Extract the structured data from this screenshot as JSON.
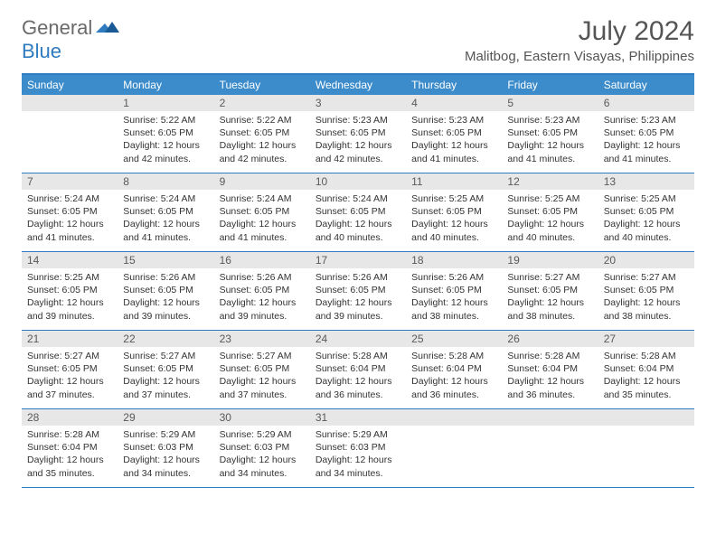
{
  "brand": {
    "general": "General",
    "blue": "Blue"
  },
  "title": "July 2024",
  "location": "Malitbog, Eastern Visayas, Philippines",
  "colors": {
    "header_bg": "#3c8ccc",
    "border": "#2f7bbf",
    "daynum_bg": "#e7e7e7",
    "text": "#333333",
    "title_text": "#555555"
  },
  "day_names": [
    "Sunday",
    "Monday",
    "Tuesday",
    "Wednesday",
    "Thursday",
    "Friday",
    "Saturday"
  ],
  "weeks": [
    [
      {
        "n": "",
        "sunrise": "",
        "sunset": "",
        "daylight": ""
      },
      {
        "n": "1",
        "sunrise": "5:22 AM",
        "sunset": "6:05 PM",
        "daylight": "12 hours and 42 minutes."
      },
      {
        "n": "2",
        "sunrise": "5:22 AM",
        "sunset": "6:05 PM",
        "daylight": "12 hours and 42 minutes."
      },
      {
        "n": "3",
        "sunrise": "5:23 AM",
        "sunset": "6:05 PM",
        "daylight": "12 hours and 42 minutes."
      },
      {
        "n": "4",
        "sunrise": "5:23 AM",
        "sunset": "6:05 PM",
        "daylight": "12 hours and 41 minutes."
      },
      {
        "n": "5",
        "sunrise": "5:23 AM",
        "sunset": "6:05 PM",
        "daylight": "12 hours and 41 minutes."
      },
      {
        "n": "6",
        "sunrise": "5:23 AM",
        "sunset": "6:05 PM",
        "daylight": "12 hours and 41 minutes."
      }
    ],
    [
      {
        "n": "7",
        "sunrise": "5:24 AM",
        "sunset": "6:05 PM",
        "daylight": "12 hours and 41 minutes."
      },
      {
        "n": "8",
        "sunrise": "5:24 AM",
        "sunset": "6:05 PM",
        "daylight": "12 hours and 41 minutes."
      },
      {
        "n": "9",
        "sunrise": "5:24 AM",
        "sunset": "6:05 PM",
        "daylight": "12 hours and 41 minutes."
      },
      {
        "n": "10",
        "sunrise": "5:24 AM",
        "sunset": "6:05 PM",
        "daylight": "12 hours and 40 minutes."
      },
      {
        "n": "11",
        "sunrise": "5:25 AM",
        "sunset": "6:05 PM",
        "daylight": "12 hours and 40 minutes."
      },
      {
        "n": "12",
        "sunrise": "5:25 AM",
        "sunset": "6:05 PM",
        "daylight": "12 hours and 40 minutes."
      },
      {
        "n": "13",
        "sunrise": "5:25 AM",
        "sunset": "6:05 PM",
        "daylight": "12 hours and 40 minutes."
      }
    ],
    [
      {
        "n": "14",
        "sunrise": "5:25 AM",
        "sunset": "6:05 PM",
        "daylight": "12 hours and 39 minutes."
      },
      {
        "n": "15",
        "sunrise": "5:26 AM",
        "sunset": "6:05 PM",
        "daylight": "12 hours and 39 minutes."
      },
      {
        "n": "16",
        "sunrise": "5:26 AM",
        "sunset": "6:05 PM",
        "daylight": "12 hours and 39 minutes."
      },
      {
        "n": "17",
        "sunrise": "5:26 AM",
        "sunset": "6:05 PM",
        "daylight": "12 hours and 39 minutes."
      },
      {
        "n": "18",
        "sunrise": "5:26 AM",
        "sunset": "6:05 PM",
        "daylight": "12 hours and 38 minutes."
      },
      {
        "n": "19",
        "sunrise": "5:27 AM",
        "sunset": "6:05 PM",
        "daylight": "12 hours and 38 minutes."
      },
      {
        "n": "20",
        "sunrise": "5:27 AM",
        "sunset": "6:05 PM",
        "daylight": "12 hours and 38 minutes."
      }
    ],
    [
      {
        "n": "21",
        "sunrise": "5:27 AM",
        "sunset": "6:05 PM",
        "daylight": "12 hours and 37 minutes."
      },
      {
        "n": "22",
        "sunrise": "5:27 AM",
        "sunset": "6:05 PM",
        "daylight": "12 hours and 37 minutes."
      },
      {
        "n": "23",
        "sunrise": "5:27 AM",
        "sunset": "6:05 PM",
        "daylight": "12 hours and 37 minutes."
      },
      {
        "n": "24",
        "sunrise": "5:28 AM",
        "sunset": "6:04 PM",
        "daylight": "12 hours and 36 minutes."
      },
      {
        "n": "25",
        "sunrise": "5:28 AM",
        "sunset": "6:04 PM",
        "daylight": "12 hours and 36 minutes."
      },
      {
        "n": "26",
        "sunrise": "5:28 AM",
        "sunset": "6:04 PM",
        "daylight": "12 hours and 36 minutes."
      },
      {
        "n": "27",
        "sunrise": "5:28 AM",
        "sunset": "6:04 PM",
        "daylight": "12 hours and 35 minutes."
      }
    ],
    [
      {
        "n": "28",
        "sunrise": "5:28 AM",
        "sunset": "6:04 PM",
        "daylight": "12 hours and 35 minutes."
      },
      {
        "n": "29",
        "sunrise": "5:29 AM",
        "sunset": "6:03 PM",
        "daylight": "12 hours and 34 minutes."
      },
      {
        "n": "30",
        "sunrise": "5:29 AM",
        "sunset": "6:03 PM",
        "daylight": "12 hours and 34 minutes."
      },
      {
        "n": "31",
        "sunrise": "5:29 AM",
        "sunset": "6:03 PM",
        "daylight": "12 hours and 34 minutes."
      },
      {
        "n": "",
        "sunrise": "",
        "sunset": "",
        "daylight": ""
      },
      {
        "n": "",
        "sunrise": "",
        "sunset": "",
        "daylight": ""
      },
      {
        "n": "",
        "sunrise": "",
        "sunset": "",
        "daylight": ""
      }
    ]
  ],
  "labels": {
    "sunrise": "Sunrise:",
    "sunset": "Sunset:",
    "daylight": "Daylight:"
  }
}
